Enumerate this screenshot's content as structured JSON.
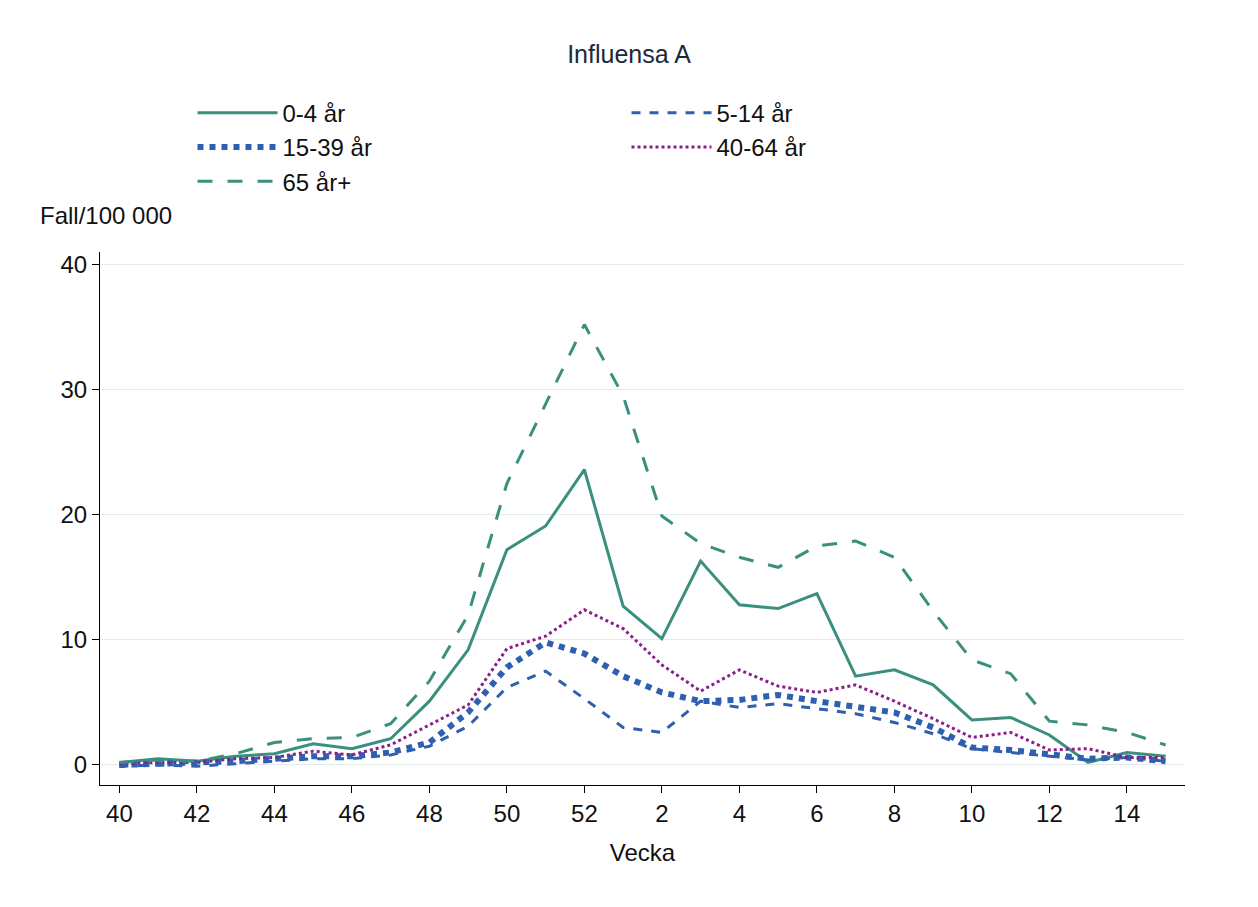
{
  "chart_data": {
    "type": "line",
    "title": "Influensa A",
    "x_label": "Vecka",
    "y_label": "Fall/100 000",
    "categories": [
      "40",
      null,
      "42",
      null,
      "44",
      null,
      "46",
      null,
      "48",
      null,
      "50",
      null,
      "52",
      null,
      "2",
      null,
      "4",
      null,
      "6",
      null,
      "8",
      null,
      "10",
      null,
      "12",
      null,
      "14",
      null
    ],
    "series": [
      {
        "name": "0-4 år",
        "color": "#3a8f7e",
        "line_style": "solid",
        "values": [
          0.2,
          0.5,
          0.3,
          0.7,
          0.9,
          1.7,
          1.3,
          2.1,
          5.1,
          9.2,
          17.2,
          19.1,
          23.6,
          12.7,
          10.1,
          16.3,
          12.8,
          12.5,
          13.7,
          7.1,
          7.6,
          6.4,
          3.6,
          3.8,
          2.4,
          0.2,
          1.0,
          0.7
        ]
      },
      {
        "name": "5-14 år",
        "color": "#2f5faf",
        "line_style": "dash",
        "values": [
          -0.1,
          0.0,
          -0.1,
          0.1,
          0.3,
          0.5,
          0.5,
          0.8,
          1.5,
          3.1,
          6.2,
          7.5,
          5.3,
          3.0,
          2.6,
          5.1,
          4.6,
          4.9,
          4.5,
          4.1,
          3.4,
          2.5,
          1.3,
          1.0,
          0.7,
          0.4,
          0.6,
          0.3
        ]
      },
      {
        "name": "15-39 år",
        "color": "#2f5faf",
        "line_style": "heavydot",
        "values": [
          0.0,
          0.1,
          0.1,
          0.3,
          0.5,
          0.7,
          0.7,
          1.0,
          1.8,
          4.2,
          7.8,
          9.8,
          8.9,
          7.1,
          5.8,
          5.1,
          5.2,
          5.6,
          5.1,
          4.7,
          4.2,
          3.0,
          1.4,
          1.2,
          0.8,
          0.5,
          0.6,
          0.3
        ]
      },
      {
        "name": "40-64 år",
        "color": "#8b1f8a",
        "line_style": "dot",
        "values": [
          0.1,
          0.2,
          0.2,
          0.5,
          0.6,
          1.1,
          0.8,
          1.6,
          3.2,
          4.8,
          9.3,
          10.3,
          12.4,
          10.9,
          8.0,
          5.9,
          7.6,
          6.3,
          5.8,
          6.4,
          5.1,
          3.7,
          2.2,
          2.6,
          1.2,
          1.3,
          0.6,
          0.6
        ]
      },
      {
        "name": "65 år+",
        "color": "#3a8f7e",
        "line_style": "longdash",
        "values": [
          0.2,
          0.4,
          0.3,
          0.9,
          1.8,
          2.1,
          2.2,
          3.3,
          6.7,
          12.0,
          22.5,
          28.8,
          35.2,
          29.5,
          19.9,
          17.7,
          16.6,
          15.8,
          17.5,
          17.9,
          16.6,
          12.3,
          8.4,
          7.3,
          3.5,
          3.2,
          2.6,
          1.6
        ]
      }
    ],
    "ylim": [
      -1.6,
      41
    ],
    "yticks": [
      0,
      10,
      20,
      30,
      40
    ],
    "grid": true,
    "legend": "top"
  }
}
